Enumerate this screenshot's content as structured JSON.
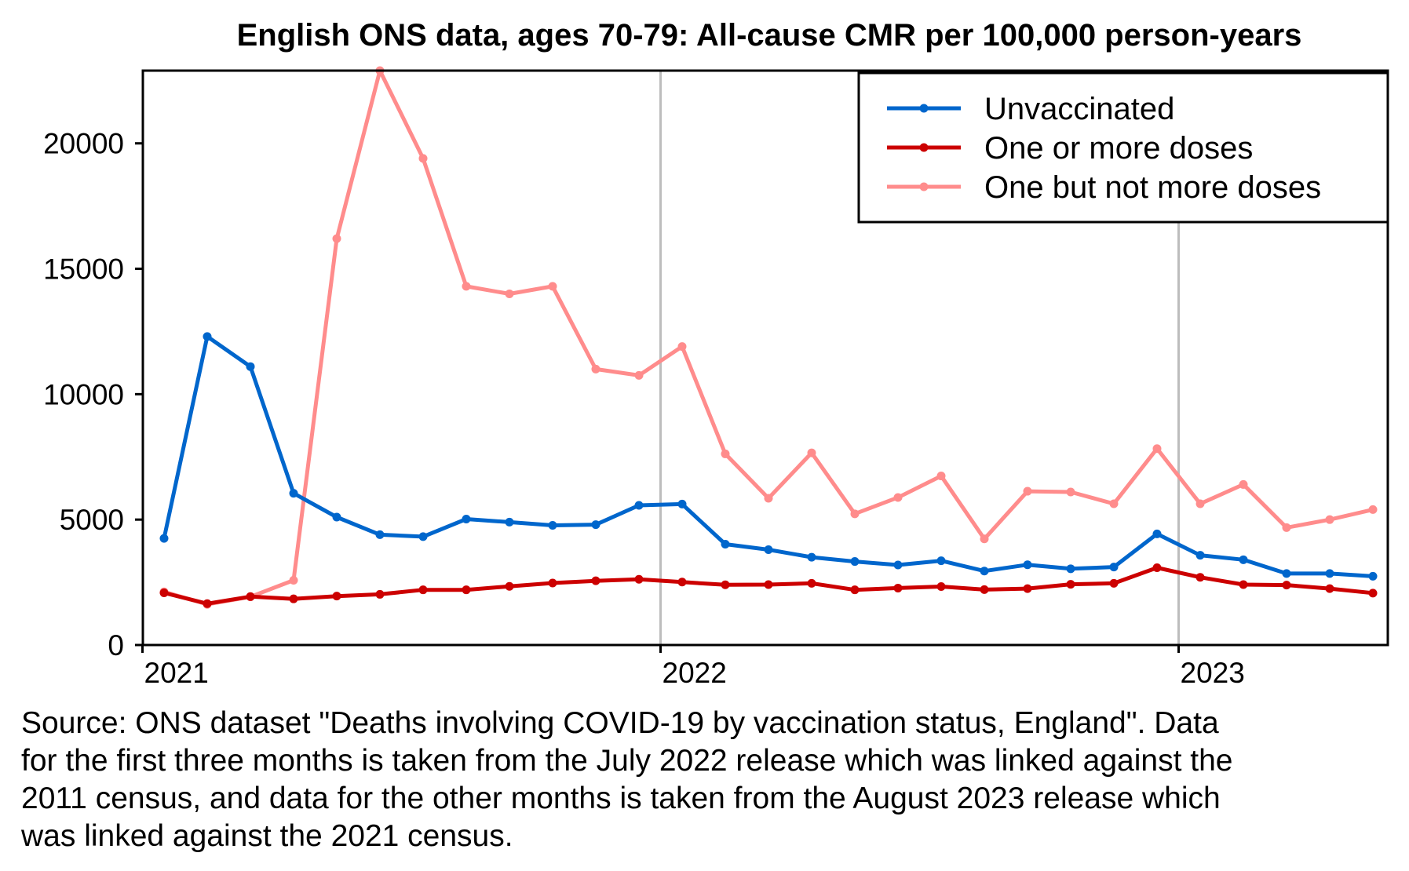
{
  "chart_data": {
    "type": "line",
    "title": "English ONS data, ages 70-79: All-cause CMR per 100,000 person-years",
    "xlabel": "",
    "ylabel": "",
    "x": [
      "2021-01",
      "2021-02",
      "2021-03",
      "2021-04",
      "2021-05",
      "2021-06",
      "2021-07",
      "2021-08",
      "2021-09",
      "2021-10",
      "2021-11",
      "2021-12",
      "2022-01",
      "2022-02",
      "2022-03",
      "2022-04",
      "2022-05",
      "2022-06",
      "2022-07",
      "2022-08",
      "2022-09",
      "2022-10",
      "2022-11",
      "2022-12",
      "2023-01",
      "2023-02",
      "2023-03",
      "2023-04",
      "2023-05"
    ],
    "x_ticks": [
      {
        "date": "2021-01",
        "label": "2021"
      },
      {
        "date": "2022-01",
        "label": "2022"
      },
      {
        "date": "2023-01",
        "label": "2023"
      }
    ],
    "ylim": [
      0,
      22900
    ],
    "yticks": [
      0,
      5000,
      10000,
      15000,
      20000
    ],
    "grid": "vertical lines at year ticks",
    "legend_position": "top-right",
    "series": [
      {
        "name": "Unvaccinated",
        "color": "#0066cc",
        "values": [
          4250,
          12300,
          11100,
          6050,
          5100,
          4400,
          4320,
          5020,
          4900,
          4770,
          4800,
          5570,
          5620,
          4020,
          3800,
          3500,
          3330,
          3190,
          3360,
          2950,
          3200,
          3040,
          3110,
          4430,
          3580,
          3400,
          2850,
          2850,
          2740
        ]
      },
      {
        "name": "One or more doses",
        "color": "#cc0000",
        "values": [
          2080,
          1650,
          1930,
          1840,
          1950,
          2020,
          2200,
          2200,
          2340,
          2470,
          2560,
          2620,
          2510,
          2400,
          2410,
          2460,
          2200,
          2270,
          2330,
          2210,
          2250,
          2420,
          2460,
          3080,
          2700,
          2410,
          2390,
          2250,
          2070
        ]
      },
      {
        "name": "One but not more doses",
        "color": "#ff8c8c",
        "values": [
          2120,
          1620,
          1920,
          2580,
          16200,
          22900,
          19400,
          14300,
          14000,
          14300,
          11000,
          10750,
          11900,
          7620,
          5850,
          7660,
          5230,
          5880,
          6740,
          4230,
          6130,
          6100,
          5630,
          7830,
          5630,
          6400,
          4680,
          5000,
          5400
        ]
      }
    ]
  },
  "caption": {
    "lines": [
      "Source: ONS dataset \"Deaths involving COVID-19 by vaccination status, England\". Data",
      "for the first three months is taken from the July 2022 release which was linked against the",
      "2011 census, and data for the other months is taken from the August 2023 release which",
      "was linked against the 2021 census."
    ]
  }
}
